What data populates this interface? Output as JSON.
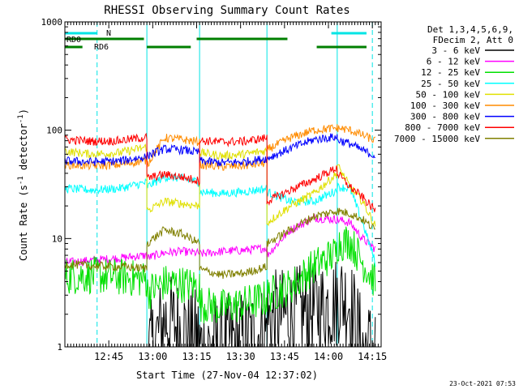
{
  "chart_data": {
    "type": "line",
    "title": "RHESSI Observing Summary Count Rates",
    "xlabel": "Start Time (27-Nov-04 12:37:02)",
    "ylabel_main": "Count Rate (s",
    "ylabel_sup1": "-1",
    "ylabel_mid": " detector",
    "ylabel_sup2": "-1",
    "ylabel_end": ")",
    "yscale": "log",
    "ylim": [
      1,
      1000
    ],
    "xlim_min": [
      -7,
      101
    ],
    "ytick_labels": [
      "1",
      "10",
      "100",
      "1000"
    ],
    "ytick_values": [
      1,
      10,
      100,
      1000
    ],
    "xtick_labels": [
      "12:45",
      "13:00",
      "13:15",
      "13:30",
      "13:45",
      "14:00",
      "14:15"
    ],
    "xtick_values": [
      8,
      23,
      38,
      53,
      68,
      83,
      98
    ],
    "legend_header": [
      "Det 1,3,4,5,6,9,",
      "FDecim 2, Att 0"
    ],
    "footer_date": "23-Oct-2021 07:53",
    "flags": {
      "N_label": "N",
      "RD0_label": "RD0",
      "RD6_label": "RD6",
      "N_color": "#00e5e5",
      "flag_color": "#007f00",
      "N_segments": [
        [
          -7,
          4
        ],
        [
          84,
          96
        ]
      ],
      "RD0_segments": [
        [
          -7,
          20
        ],
        [
          38,
          69
        ]
      ],
      "RD6_segments": [
        [
          -7,
          -1
        ],
        [
          21,
          36
        ],
        [
          79,
          96
        ]
      ]
    },
    "vlines": {
      "solid": [
        -7,
        21,
        39,
        62,
        86
      ],
      "dashed": [
        4,
        98
      ],
      "color": "#00e5e5"
    },
    "segments": [
      [
        -7,
        21
      ],
      [
        21,
        39
      ],
      [
        39,
        62
      ],
      [
        62,
        86
      ],
      [
        86,
        99
      ]
    ],
    "series": [
      {
        "name": "3 - 6 keV",
        "color": "#000000",
        "values": [
          [
            0.3,
            0.35,
            0.3,
            0.25
          ],
          [
            0.8,
            1.8,
            1.5,
            1.2
          ],
          [
            1.0,
            1.1,
            1.2,
            1.4
          ],
          [
            1.8,
            2.0,
            2.2,
            2.6
          ],
          [
            3.0,
            2.6,
            1.0,
            1.0
          ]
        ]
      },
      {
        "name": "6 - 12 keV",
        "color": "#ff00ff",
        "values": [
          [
            6.0,
            6.3,
            6.6,
            7.0
          ],
          [
            6.6,
            7.4,
            7.6,
            7.3
          ],
          [
            7.2,
            7.6,
            7.8,
            8.2
          ],
          [
            7.0,
            12.0,
            15.5,
            15.0
          ],
          [
            15.0,
            14.0,
            10.0,
            8.0
          ]
        ]
      },
      {
        "name": "12 - 25 keV",
        "color": "#00e000",
        "values": [
          [
            4.5,
            4.6,
            4.4,
            4.2
          ],
          [
            3.2,
            3.9,
            3.8,
            3.6
          ],
          [
            2.5,
            2.3,
            2.5,
            2.8
          ],
          [
            3.0,
            3.6,
            5.5,
            7.5
          ],
          [
            9.0,
            9.5,
            6.0,
            4.0
          ]
        ]
      },
      {
        "name": "25 - 50 keV",
        "color": "#00ffff",
        "values": [
          [
            29.0,
            28.0,
            29.0,
            33.0
          ],
          [
            30.0,
            37.0,
            36.0,
            33.0
          ],
          [
            27.0,
            26.0,
            27.0,
            29.0
          ],
          [
            27.0,
            22.0,
            22.0,
            28.0
          ],
          [
            30.0,
            29.0,
            14.0,
            6.0
          ]
        ]
      },
      {
        "name": "50 - 100 keV",
        "color": "#e0e000",
        "values": [
          [
            64.0,
            60.0,
            62.0,
            70.0
          ],
          [
            18.0,
            22.0,
            21.0,
            20.0
          ],
          [
            62.0,
            58.0,
            60.0,
            65.0
          ],
          [
            14.0,
            20.0,
            26.0,
            40.0
          ],
          [
            48.0,
            30.0,
            22.0,
            13.0
          ]
        ]
      },
      {
        "name": "100 - 300 keV",
        "color": "#ff8c00",
        "values": [
          [
            48.0,
            47.0,
            48.0,
            53.0
          ],
          [
            48.0,
            85.0,
            82.0,
            78.0
          ],
          [
            48.0,
            46.0,
            47.0,
            50.0
          ],
          [
            66.0,
            85.0,
            100.0,
            105.0
          ],
          [
            105.0,
            100.0,
            90.0,
            80.0
          ]
        ]
      },
      {
        "name": "300 - 800 keV",
        "color": "#0000ff",
        "values": [
          [
            52.0,
            51.0,
            52.0,
            57.0
          ],
          [
            58.0,
            67.0,
            66.0,
            62.0
          ],
          [
            52.0,
            50.0,
            51.0,
            55.0
          ],
          [
            55.0,
            68.0,
            82.0,
            87.0
          ],
          [
            82.0,
            75.0,
            65.0,
            58.0
          ]
        ]
      },
      {
        "name": "800 - 7000 keV",
        "color": "#ff0000",
        "values": [
          [
            82.0,
            79.0,
            80.0,
            86.0
          ],
          [
            36.0,
            39.0,
            37.0,
            34.0
          ],
          [
            80.0,
            78.0,
            79.0,
            85.0
          ],
          [
            22.0,
            28.0,
            35.0,
            45.0
          ],
          [
            40.0,
            30.0,
            24.0,
            18.0
          ]
        ]
      },
      {
        "name": "7000 - 15000 keV",
        "color": "#808000",
        "values": [
          [
            5.8,
            5.6,
            5.5,
            5.3
          ],
          [
            9.0,
            12.0,
            11.0,
            9.0
          ],
          [
            5.2,
            4.6,
            4.8,
            5.5
          ],
          [
            9.0,
            12.0,
            16.0,
            18.0
          ],
          [
            18.0,
            17.0,
            15.0,
            12.0
          ]
        ]
      }
    ]
  }
}
